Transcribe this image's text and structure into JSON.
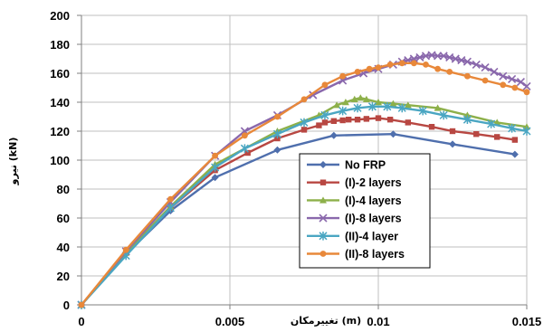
{
  "chart_data": {
    "type": "line",
    "title": "",
    "xlabel": "تغییرمکان (m)",
    "ylabel": "نیرو (kN)",
    "xlim": [
      0,
      0.015
    ],
    "ylim": [
      0,
      200
    ],
    "xticks": [
      0,
      0.005,
      0.01,
      0.015
    ],
    "xtick_labels": [
      "0",
      "0.005",
      "0.01",
      "0.015"
    ],
    "yticks": [
      0,
      20,
      40,
      60,
      80,
      100,
      120,
      140,
      160,
      180,
      200
    ],
    "ytick_labels": [
      "0",
      "20",
      "40",
      "60",
      "80",
      "100",
      "120",
      "140",
      "160",
      "180",
      "200"
    ],
    "grid": true,
    "legend_position": "center-right",
    "series": [
      {
        "name": "No FRP",
        "color": "#4f6fad",
        "marker": "diamond",
        "x": [
          0,
          0.0015,
          0.003,
          0.0045,
          0.0066,
          0.0085,
          0.0105,
          0.0125,
          0.0146
        ],
        "y": [
          0,
          35,
          65,
          88,
          107,
          117,
          118,
          111,
          104
        ]
      },
      {
        "name": "(I)-2 layers",
        "color": "#b84742",
        "marker": "square",
        "x": [
          0,
          0.0015,
          0.003,
          0.0045,
          0.0056,
          0.0066,
          0.0075,
          0.008,
          0.0082,
          0.0085,
          0.0088,
          0.009,
          0.0093,
          0.0096,
          0.01,
          0.0104,
          0.011,
          0.0118,
          0.0125,
          0.0133,
          0.014,
          0.0146
        ],
        "y": [
          0,
          36,
          67,
          93,
          105,
          115,
          121,
          124,
          126,
          127,
          127.5,
          128,
          128,
          128.5,
          129,
          128,
          126,
          123,
          120,
          118,
          116,
          114
        ]
      },
      {
        "name": "(I)-4 layers",
        "color": "#8db04a",
        "marker": "triangle",
        "x": [
          0,
          0.0015,
          0.003,
          0.0045,
          0.0066,
          0.008,
          0.0086,
          0.0089,
          0.0092,
          0.0094,
          0.0096,
          0.01,
          0.0105,
          0.011,
          0.012,
          0.013,
          0.014,
          0.015
        ],
        "y": [
          0,
          36,
          68,
          97,
          120,
          131,
          138,
          140,
          142,
          143,
          142,
          140,
          139,
          138,
          136,
          131,
          126,
          123
        ]
      },
      {
        "name": "(I)-8 layers",
        "color": "#8a68ac",
        "marker": "x",
        "x": [
          0,
          0.0015,
          0.003,
          0.0045,
          0.0055,
          0.0066,
          0.0078,
          0.0088,
          0.0095,
          0.01,
          0.0105,
          0.0108,
          0.011,
          0.0112,
          0.0114,
          0.0116,
          0.0118,
          0.012,
          0.0122,
          0.0124,
          0.0126,
          0.0128,
          0.013,
          0.0133,
          0.0136,
          0.0139,
          0.0142,
          0.0145,
          0.0148,
          0.015
        ],
        "y": [
          0,
          37,
          71,
          103,
          120,
          131,
          145,
          155,
          160,
          163,
          166,
          168,
          169,
          170,
          171,
          172,
          172.5,
          172,
          172,
          171,
          170,
          169,
          168,
          166,
          164,
          161,
          158,
          156,
          154,
          151
        ]
      },
      {
        "name": "(II)-4 layer",
        "color": "#4aa6c2",
        "marker": "star",
        "x": [
          0,
          0.0015,
          0.003,
          0.0045,
          0.0055,
          0.0066,
          0.0075,
          0.0082,
          0.0088,
          0.0093,
          0.0098,
          0.0103,
          0.0108,
          0.0115,
          0.0122,
          0.013,
          0.0138,
          0.0145,
          0.015
        ],
        "y": [
          0,
          34,
          67,
          95,
          108,
          118,
          126,
          131,
          134,
          136,
          137,
          137,
          136,
          134,
          131,
          128,
          125,
          122,
          120
        ]
      },
      {
        "name": "(II)-8 layers",
        "color": "#e8883a",
        "marker": "circle",
        "x": [
          0,
          0.0015,
          0.003,
          0.0045,
          0.0055,
          0.0066,
          0.0075,
          0.0082,
          0.0088,
          0.0093,
          0.0097,
          0.01,
          0.0104,
          0.0108,
          0.0112,
          0.0116,
          0.012,
          0.0124,
          0.013,
          0.0136,
          0.0142,
          0.0146,
          0.015
        ],
        "y": [
          0,
          38,
          73,
          103,
          117,
          130,
          142,
          152,
          158,
          161,
          163,
          164,
          166,
          167,
          167,
          166,
          163,
          161,
          158,
          155,
          152,
          150,
          147
        ]
      }
    ]
  }
}
